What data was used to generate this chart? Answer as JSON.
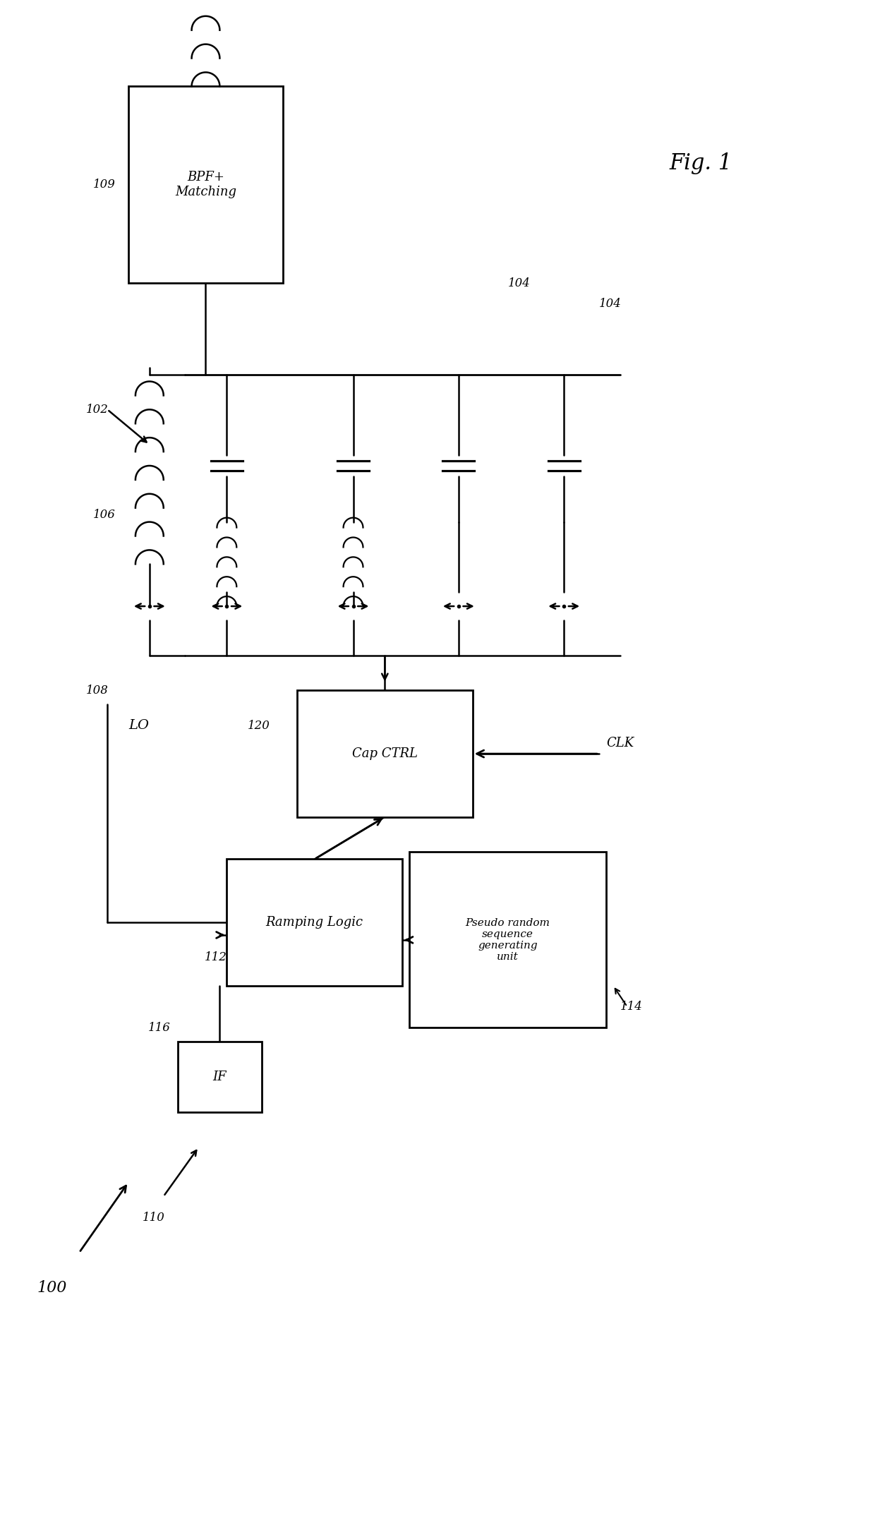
{
  "title": "Fig. 1",
  "background_color": "#ffffff",
  "line_color": "#000000",
  "labels": {
    "fig1": "Fig. 1",
    "109": "109",
    "102": "102",
    "106": "106",
    "104a": "104",
    "104b": "104",
    "120": "120",
    "108": "108",
    "LO": "LO",
    "112": "112",
    "114": "114",
    "116": "116",
    "110": "110",
    "100": "100",
    "CLK": "CLK",
    "bpf": "BPF+\nMatching",
    "cap_ctrl": "Cap CTRL",
    "ramping": "Ramping Logic",
    "pseudo": "Pseudo random\nsequence\ngenerating\nunit",
    "IF": "IF"
  }
}
